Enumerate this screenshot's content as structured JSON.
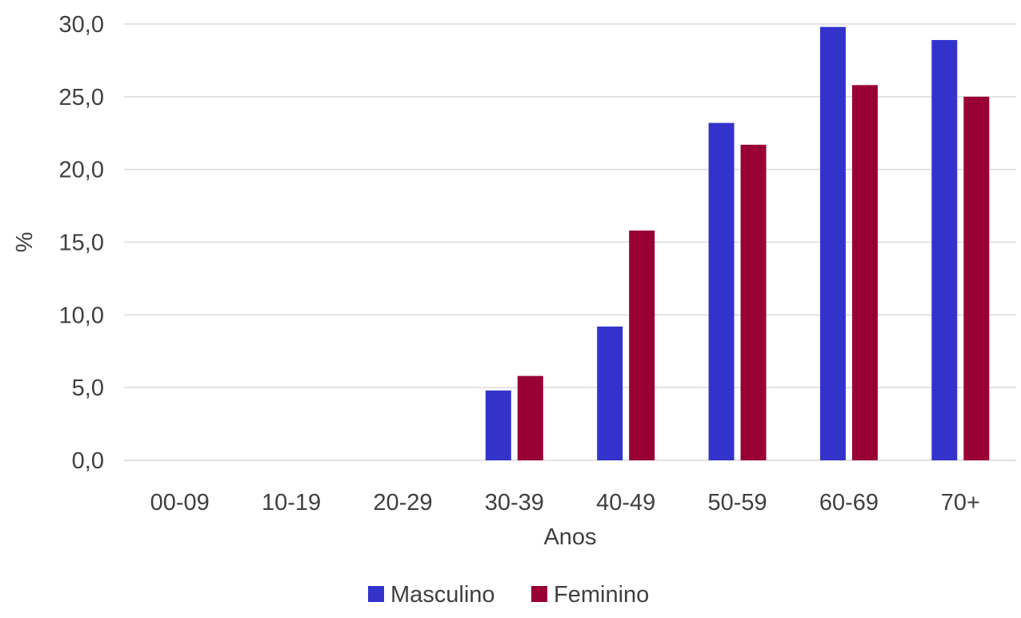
{
  "chart_data": {
    "type": "bar",
    "title": "",
    "xlabel": "Anos",
    "ylabel": "%",
    "categories": [
      "00-09",
      "10-19",
      "20-29",
      "30-39",
      "40-49",
      "50-59",
      "60-69",
      "70+"
    ],
    "series": [
      {
        "name": "Masculino",
        "color": "#3333cc",
        "values": [
          0,
          0,
          0,
          4.8,
          9.2,
          23.2,
          29.8,
          28.9
        ]
      },
      {
        "name": "Feminino",
        "color": "#990033",
        "values": [
          0,
          0,
          0,
          5.8,
          15.8,
          21.7,
          25.8,
          25.0
        ]
      }
    ],
    "ylim": [
      0,
      30
    ],
    "yticks": [
      "0,0",
      "5,0",
      "10,0",
      "15,0",
      "20,0",
      "25,0",
      "30,0"
    ],
    "grid": true,
    "legend_position": "bottom"
  }
}
